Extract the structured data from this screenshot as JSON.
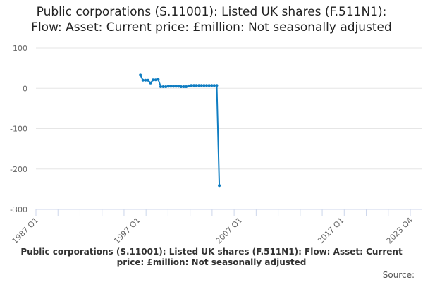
{
  "chart_data": {
    "type": "line",
    "title_line1": "Public corporations (S.11001): Listed UK shares (F.511N1):",
    "title_line2": "Flow: Asset: Current price: £million: Not seasonally adjusted",
    "series_title": "Public corporations (S.11001): Listed UK shares (F.511N1): Flow: Asset: Current price: £million: Not seasonally adjusted",
    "source_label": "Source:",
    "ylim": [
      -300,
      100
    ],
    "yticks": [
      100,
      0,
      -100,
      -200,
      -300
    ],
    "xticks": [
      "1987 Q1",
      "1997 Q1",
      "2007 Q1",
      "2017 Q1",
      "2023 Q4"
    ],
    "x_start": "1987 Q1",
    "x_end": "2023 Q4",
    "grid": true,
    "color": "#0f7dc2",
    "x": [
      "1997 Q2",
      "1997 Q3",
      "1997 Q4",
      "1998 Q1",
      "1998 Q2",
      "1998 Q3",
      "1998 Q4",
      "1999 Q1",
      "1999 Q2",
      "1999 Q3",
      "1999 Q4",
      "2000 Q1",
      "2000 Q2",
      "2000 Q3",
      "2000 Q4",
      "2001 Q1",
      "2001 Q2",
      "2001 Q3",
      "2001 Q4",
      "2002 Q1",
      "2002 Q2",
      "2002 Q3",
      "2002 Q4",
      "2003 Q1",
      "2003 Q2",
      "2003 Q3",
      "2003 Q4",
      "2004 Q1",
      "2004 Q2",
      "2004 Q3",
      "2004 Q4",
      "2005 Q1"
    ],
    "values": [
      33,
      20,
      20,
      20,
      13,
      21,
      21,
      22,
      4,
      4,
      4,
      5,
      5,
      5,
      5,
      5,
      4,
      4,
      4,
      6,
      7,
      7,
      7,
      7,
      7,
      7,
      7,
      7,
      7,
      7,
      7,
      -241
    ]
  }
}
